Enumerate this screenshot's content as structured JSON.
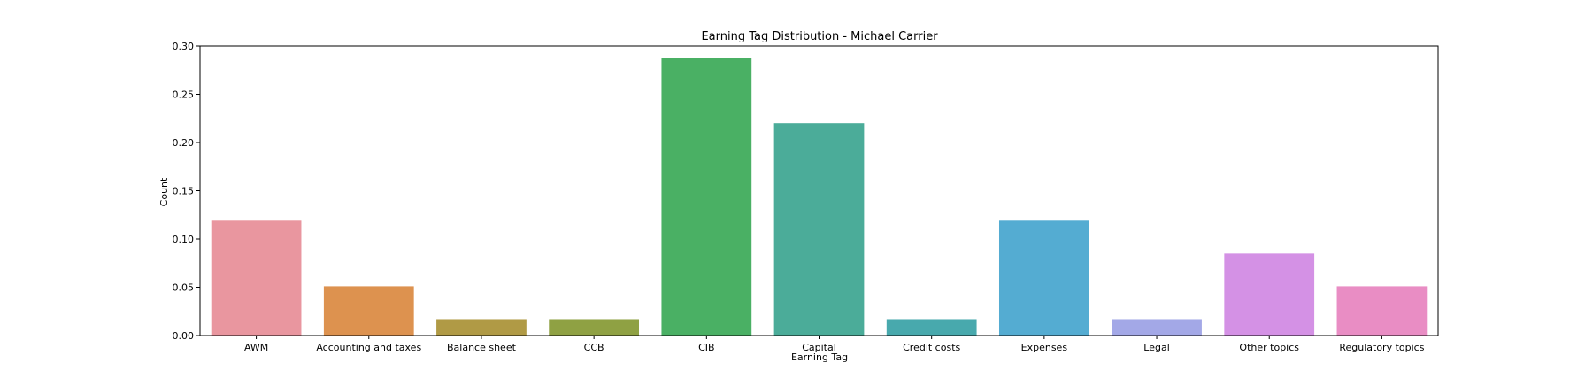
{
  "chart_data": {
    "type": "bar",
    "title": "Earning Tag Distribution - Michael Carrier",
    "xlabel": "Earning Tag",
    "ylabel": "Count",
    "ylim": [
      0,
      0.3
    ],
    "yticks": [
      "0.00",
      "0.05",
      "0.10",
      "0.15",
      "0.20",
      "0.25",
      "0.30"
    ],
    "ytick_values": [
      0,
      0.05,
      0.1,
      0.15,
      0.2,
      0.25,
      0.3
    ],
    "grid": false,
    "categories": [
      "AWM",
      "Accounting and taxes",
      "Balance sheet",
      "CCB",
      "CIB",
      "Capital",
      "Credit costs",
      "Expenses",
      "Legal",
      "Other topics",
      "Regulatory topics"
    ],
    "values": [
      0.119,
      0.051,
      0.017,
      0.017,
      0.288,
      0.22,
      0.017,
      0.119,
      0.017,
      0.085,
      0.051
    ],
    "colors": [
      "#E9969F",
      "#DD924F",
      "#B09A45",
      "#8FA143",
      "#4AB064",
      "#4BAC99",
      "#48A9AD",
      "#54ACD2",
      "#A3A8E7",
      "#D491E5",
      "#E98DC4"
    ]
  }
}
